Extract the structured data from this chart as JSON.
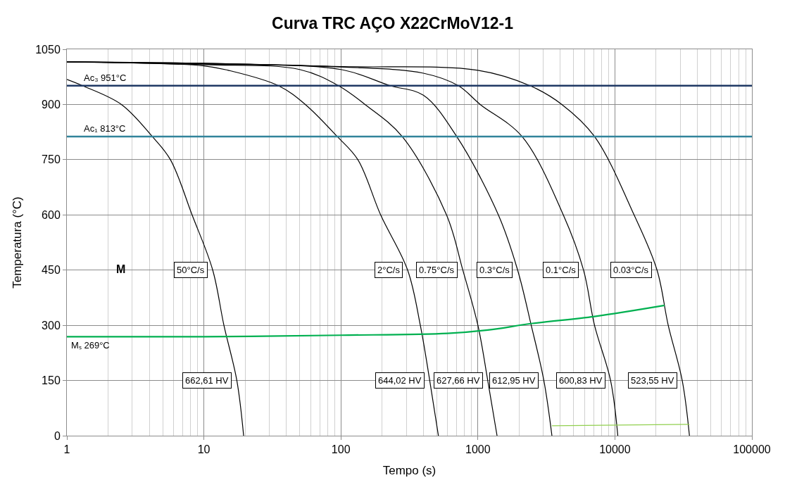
{
  "chart_data": {
    "type": "line",
    "title": "Curva TRC AÇO X22CrMoV12-1",
    "xlabel": "Tempo (s)",
    "ylabel": "Temperatura (°C)",
    "log": "x",
    "grid": true,
    "legend": false,
    "marker": "none",
    "line_style": "solid",
    "xlim": [
      1,
      100000
    ],
    "xticks": [
      1,
      10,
      100,
      1000,
      10000,
      100000
    ],
    "ylim": [
      0,
      1050
    ],
    "yticks": [
      0,
      150,
      300,
      450,
      600,
      750,
      900,
      1050
    ],
    "series": [
      {
        "color": "#000000",
        "x": [
          1,
          1.3,
          2.5,
          4.2,
          5.7,
          8.2,
          11.6,
          14,
          17.4,
          19.5
        ],
        "values": [
          968,
          951,
          900,
          813,
          750,
          600,
          450,
          300,
          150,
          0
        ]
      },
      {
        "color": "#000000",
        "x": [
          1,
          10,
          15,
          35,
          55,
          94,
          133,
          195,
          307,
          380,
          445,
          515
        ],
        "values": [
          1016,
          1005,
          993,
          951,
          900,
          813,
          750,
          600,
          450,
          300,
          150,
          0
        ]
      },
      {
        "color": "#000000",
        "x": [
          1,
          10,
          50,
          96,
          150,
          280,
          590,
          776,
          1000,
          1180,
          1380
        ],
        "values": [
          1016,
          1008,
          995,
          951,
          900,
          813,
          600,
          450,
          300,
          150,
          0
        ]
      },
      {
        "color": "#000000",
        "x": [
          1,
          10,
          100,
          229,
          400,
          700,
          1410,
          1950,
          2450,
          3030,
          3470
        ],
        "values": [
          1016,
          1010,
          995,
          951,
          925,
          813,
          600,
          450,
          300,
          150,
          0
        ]
      },
      {
        "color": "#000000",
        "x": [
          1,
          10,
          100,
          400,
          720,
          1040,
          2100,
          4200,
          5900,
          7100,
          9300,
          10500
        ],
        "values": [
          1016,
          1012,
          1002,
          985,
          951,
          900,
          813,
          600,
          450,
          300,
          150,
          0
        ]
      },
      {
        "color": "#000000",
        "x": [
          1,
          10,
          100,
          1000,
          2400,
          4100,
          7100,
          13800,
          20300,
          24500,
          31000,
          35000
        ],
        "values": [
          1016,
          1012,
          1003,
          993,
          951,
          900,
          813,
          600,
          450,
          300,
          150,
          0
        ]
      },
      {
        "name": "Mₛ 269°C",
        "color": "#00b050",
        "x": [
          1,
          10,
          100,
          600,
          1180,
          2500,
          7100,
          23000
        ],
        "values": [
          269,
          269,
          273,
          278,
          287,
          305,
          324,
          354
        ]
      },
      {
        "color": "#92d050",
        "x": [
          3470,
          35000
        ],
        "values": [
          27,
          31
        ]
      }
    ],
    "ref_lines": [
      {
        "axis": "y",
        "value": 951,
        "label": "Ac₃ 951°C",
        "color": "#1f3864"
      },
      {
        "axis": "y",
        "value": 813,
        "label": "Ac₁ 813°C",
        "color": "#31849b"
      }
    ],
    "annotations": [
      "M",
      {
        "text": "50°C/s",
        "x": 11.6,
        "y": 450
      },
      {
        "text": "2°C/s",
        "x": 307,
        "y": 450
      },
      {
        "text": "0.75°C/s",
        "x": 776,
        "y": 450
      },
      {
        "text": "0.3°C/s",
        "x": 1950,
        "y": 450
      },
      {
        "text": "0.1°C/s",
        "x": 5900,
        "y": 450
      },
      {
        "text": "0.03°C/s",
        "x": 20300,
        "y": 450
      },
      {
        "text": "662,61 HV",
        "x": 17.4,
        "y": 150
      },
      {
        "text": "644,02 HV",
        "x": 445,
        "y": 150
      },
      {
        "text": "627,66 HV",
        "x": 1180,
        "y": 150
      },
      {
        "text": "612,95 HV",
        "x": 3030,
        "y": 150
      },
      {
        "text": "600,83 HV",
        "x": 9300,
        "y": 150
      },
      {
        "text": "523,55 HV",
        "x": 31000,
        "y": 150
      }
    ]
  }
}
